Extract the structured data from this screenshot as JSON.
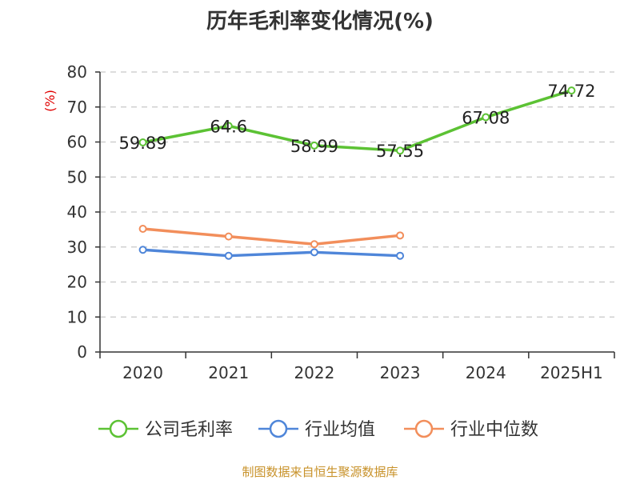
{
  "chart_data": {
    "type": "line",
    "title": "历年毛利率变化情况(%)",
    "unit_label": "(%)",
    "categories": [
      "2020",
      "2021",
      "2022",
      "2023",
      "2024",
      "2025H1"
    ],
    "yticks": [
      "0",
      "10",
      "20",
      "30",
      "40",
      "50",
      "60",
      "70",
      "80"
    ],
    "ylim": [
      0,
      80
    ],
    "grid": true,
    "legend_position": "bottom",
    "series": [
      {
        "name": "公司毛利率",
        "color": "#5cc234",
        "values": [
          59.89,
          64.6,
          58.99,
          57.55,
          67.08,
          74.72
        ],
        "labels": [
          "59.89",
          "64.6",
          "58.99",
          "57.55",
          "67.08",
          "74.72"
        ]
      },
      {
        "name": "行业均值",
        "color": "#4f86d9",
        "values": [
          29.2,
          27.5,
          28.5,
          27.5,
          null,
          null
        ],
        "labels": []
      },
      {
        "name": "行业中位数",
        "color": "#f28e5b",
        "values": [
          35.2,
          33.0,
          30.8,
          33.3,
          null,
          null
        ],
        "labels": []
      }
    ]
  },
  "source": "制图数据来自恒生聚源数据库"
}
